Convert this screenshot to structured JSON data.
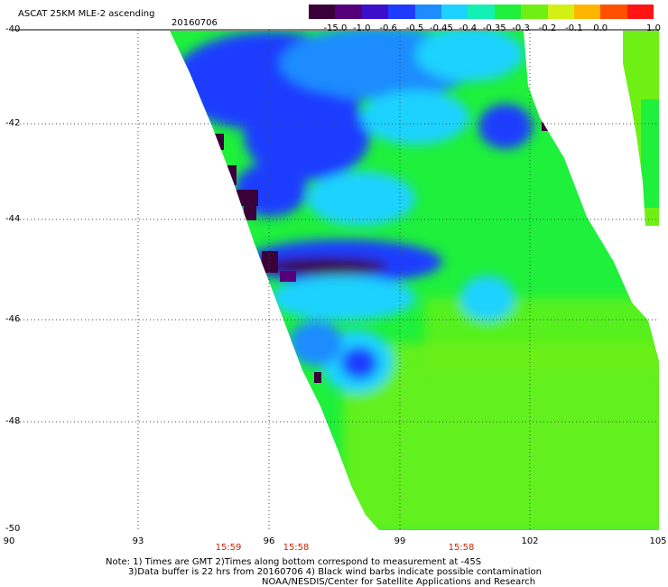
{
  "header": {
    "title": "ASCAT 25KM MLE-2 ascending",
    "date": "20160706"
  },
  "colorbar": {
    "labels": [
      "-15.0",
      "-1.0",
      "-0.6",
      "-0.5",
      "-0.45",
      "-0.4",
      "-0.35",
      "-0.3",
      "-0.2",
      "-0.1",
      "0.0",
      "1.0"
    ],
    "colors": [
      "#3a003a",
      "#55007a",
      "#3c10c8",
      "#1e3cff",
      "#1e8cff",
      "#1ed2ff",
      "#14f0b4",
      "#1ef03c",
      "#6ef014",
      "#d2f014",
      "#ffb400",
      "#ff5000",
      "#ff1414"
    ]
  },
  "axes": {
    "y_labels": [
      "-40",
      "-42",
      "-44",
      "-46",
      "-48",
      "-50"
    ],
    "x_labels": [
      "90",
      "93",
      "96",
      "99",
      "102",
      "105"
    ],
    "time_labels": [
      "15:59",
      "15:58",
      "15:58"
    ]
  },
  "map_data": {
    "field": "ASCAT MLE-2 normalized value",
    "lat_range": [
      -50,
      -40
    ],
    "lon_range": [
      90,
      105
    ],
    "palette": {
      "dark_purple": "#3a003a",
      "blue": "#1e3cff",
      "light_blue": "#1e8cff",
      "cyan": "#1ed2ff",
      "green": "#1ef03c",
      "light_green": "#6ef014"
    }
  },
  "notes": {
    "line1": "Note: 1) Times are GMT  2)Times along bottom correspond to measurement at -45S",
    "line2": "3)Data buffer is 22 hrs from 20160706  4) Black wind barbs indicate possible contamination",
    "line3": "NOAA/NESDIS/Center for Satellite Applications and Research"
  }
}
